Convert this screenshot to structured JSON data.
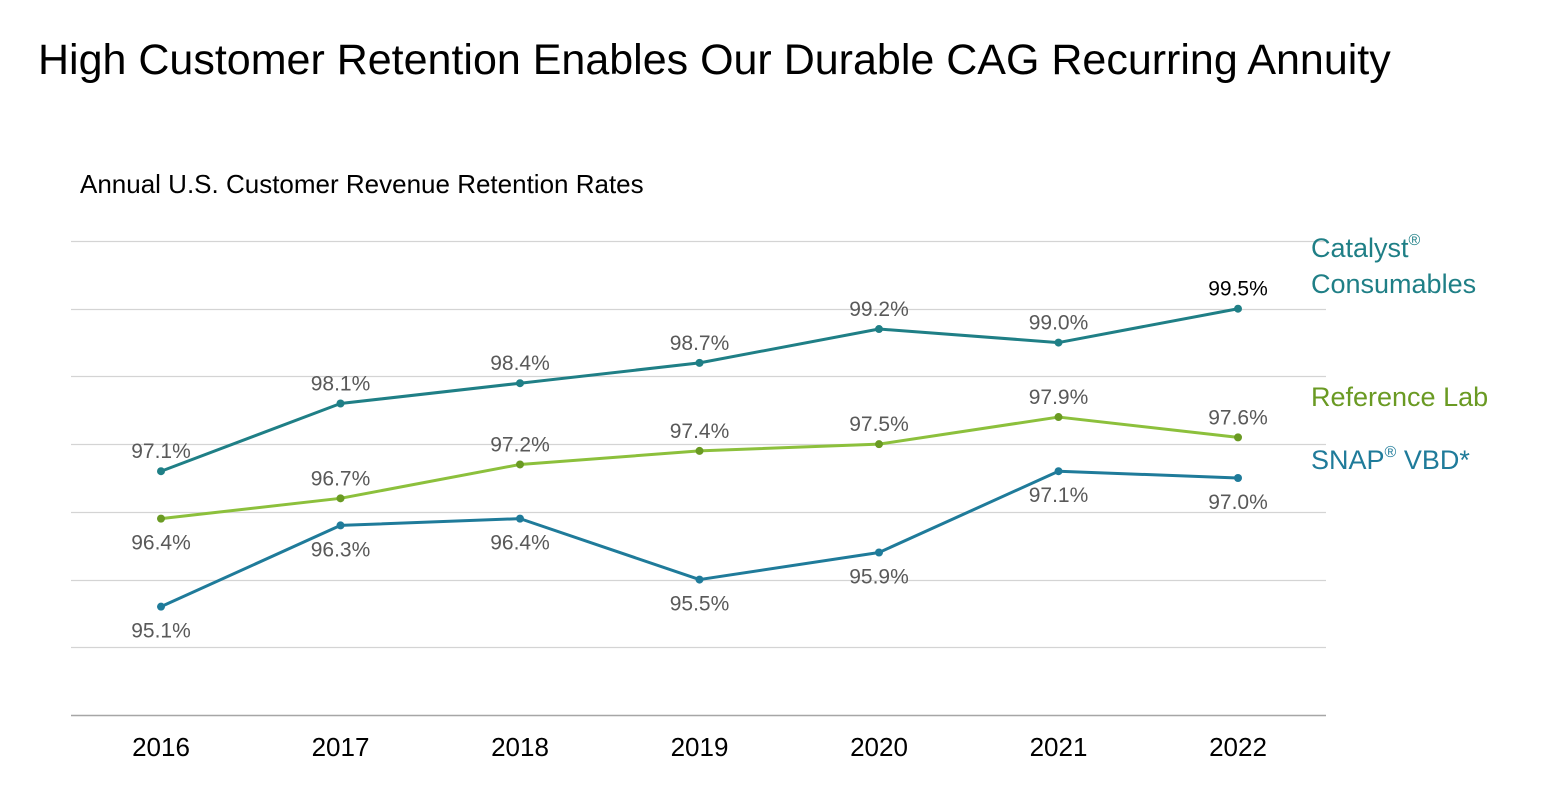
{
  "title": "High Customer Retention Enables Our Durable CAG Recurring Annuity",
  "chart_data": {
    "type": "line",
    "title": "Annual U.S. Customer Revenue Retention Rates",
    "categories": [
      "2016",
      "2017",
      "2018",
      "2019",
      "2020",
      "2021",
      "2022"
    ],
    "ylim": [
      93.5,
      100.5
    ],
    "grid": true,
    "legend_placement": "right, beside line ends",
    "series": [
      {
        "name": "Catalyst® Consumables",
        "legend_lines": [
          "Catalyst",
          "Consumables"
        ],
        "legend_sup": "®",
        "color": "#1f7f86",
        "values": [
          97.1,
          98.1,
          98.4,
          98.7,
          99.2,
          99.0,
          99.5
        ],
        "labels": [
          "97.1%",
          "98.1%",
          "98.4%",
          "98.7%",
          "99.2%",
          "99.0%",
          "99.5%"
        ],
        "label_position": "above"
      },
      {
        "name": "Reference Lab",
        "legend_lines": [
          "Reference Lab"
        ],
        "color": "#8cc03c",
        "marker_color": "#6a9a23",
        "values": [
          96.4,
          96.7,
          97.2,
          97.4,
          97.5,
          97.9,
          97.6
        ],
        "labels": [
          "96.4%",
          "96.7%",
          "97.2%",
          "97.4%",
          "97.5%",
          "97.9%",
          "97.6%"
        ],
        "label_position": [
          "below",
          "above",
          "above",
          "above",
          "above",
          "above",
          "above"
        ]
      },
      {
        "name": "SNAP® VBD*",
        "legend_lines": [
          "SNAP VBD*"
        ],
        "legend_sup": "®",
        "color": "#1f7b9a",
        "values": [
          95.1,
          96.3,
          96.4,
          95.5,
          95.9,
          97.1,
          97.0
        ],
        "labels": [
          "95.1%",
          "96.3%",
          "96.4%",
          "95.5%",
          "95.9%",
          "97.1%",
          "97.0%"
        ],
        "label_position": "below"
      }
    ]
  }
}
